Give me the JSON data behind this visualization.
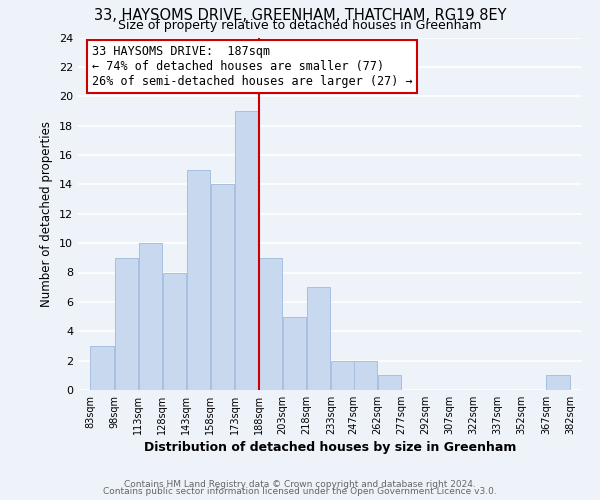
{
  "title": "33, HAYSOMS DRIVE, GREENHAM, THATCHAM, RG19 8EY",
  "subtitle": "Size of property relative to detached houses in Greenham",
  "xlabel": "Distribution of detached houses by size in Greenham",
  "ylabel": "Number of detached properties",
  "bin_edges": [
    83,
    98,
    113,
    128,
    143,
    158,
    173,
    188,
    203,
    218,
    233,
    247,
    262,
    277,
    292,
    307,
    322,
    337,
    352,
    367,
    382
  ],
  "counts": [
    3,
    9,
    10,
    8,
    15,
    14,
    19,
    9,
    5,
    7,
    2,
    2,
    1,
    0,
    0,
    0,
    0,
    0,
    0,
    1
  ],
  "bar_color": "#c8d8ee",
  "bar_edgecolor": "#a8c0e0",
  "vline_x": 188,
  "vline_color": "#cc0000",
  "annotation_title": "33 HAYSOMS DRIVE:  187sqm",
  "annotation_line1": "← 74% of detached houses are smaller (77)",
  "annotation_line2": "26% of semi-detached houses are larger (27) →",
  "annotation_box_color": "white",
  "annotation_box_edgecolor": "#cc0000",
  "ylim": [
    0,
    24
  ],
  "yticks": [
    0,
    2,
    4,
    6,
    8,
    10,
    12,
    14,
    16,
    18,
    20,
    22,
    24
  ],
  "xtick_labels": [
    "83sqm",
    "98sqm",
    "113sqm",
    "128sqm",
    "143sqm",
    "158sqm",
    "173sqm",
    "188sqm",
    "203sqm",
    "218sqm",
    "233sqm",
    "247sqm",
    "262sqm",
    "277sqm",
    "292sqm",
    "307sqm",
    "322sqm",
    "337sqm",
    "352sqm",
    "367sqm",
    "382sqm"
  ],
  "footer1": "Contains HM Land Registry data © Crown copyright and database right 2024.",
  "footer2": "Contains public sector information licensed under the Open Government Licence v3.0.",
  "background_color": "#eef2f9",
  "plot_bg_color": "#eef2f9",
  "grid_color": "white"
}
